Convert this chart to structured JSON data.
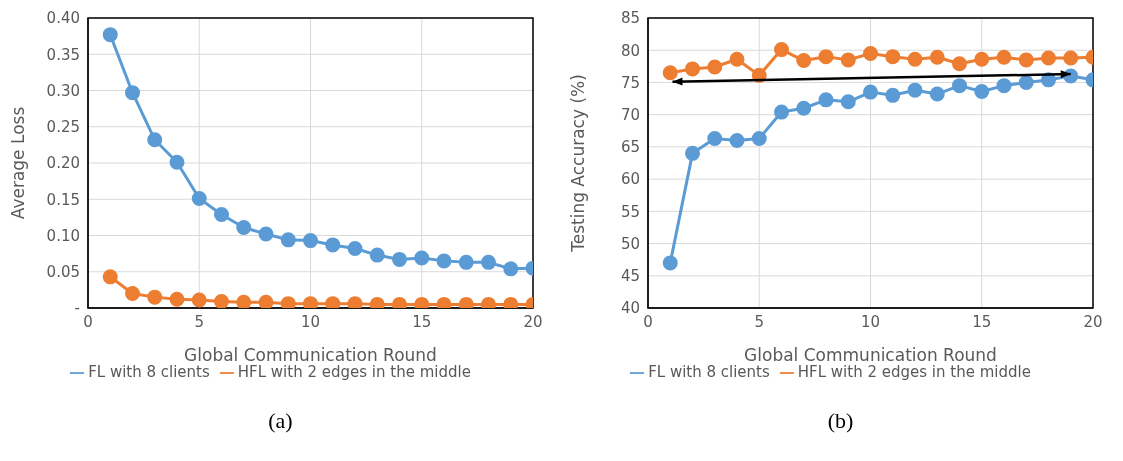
{
  "chart_data": [
    {
      "type": "line",
      "xlabel": "Global Communication Round",
      "ylabel": "Average Loss",
      "x": [
        1,
        2,
        3,
        4,
        5,
        6,
        7,
        8,
        9,
        10,
        11,
        12,
        13,
        14,
        15,
        16,
        17,
        18,
        19,
        20
      ],
      "xlim": [
        0,
        20
      ],
      "xticks": [
        0,
        5,
        10,
        15,
        20
      ],
      "ylim": [
        0,
        0.4
      ],
      "yticks": [
        {
          "value": 0,
          "label": "-"
        },
        {
          "value": 0.05,
          "label": "0.05"
        },
        {
          "value": 0.1,
          "label": "0.10"
        },
        {
          "value": 0.15,
          "label": "0.15"
        },
        {
          "value": 0.2,
          "label": "0.20"
        },
        {
          "value": 0.25,
          "label": "0.25"
        },
        {
          "value": 0.3,
          "label": "0.30"
        },
        {
          "value": 0.35,
          "label": "0.35"
        },
        {
          "value": 0.4,
          "label": "0.40"
        }
      ],
      "grid": true,
      "legend": "bottom",
      "marker": "circle",
      "annotations": [
        "(a)"
      ],
      "series": [
        {
          "name": "FL with 8 clients",
          "color": "#5b9bd5",
          "values": [
            0.377,
            0.297,
            0.232,
            0.201,
            0.151,
            0.129,
            0.111,
            0.102,
            0.094,
            0.093,
            0.087,
            0.082,
            0.073,
            0.067,
            0.069,
            0.065,
            0.063,
            0.063,
            0.054,
            0.055
          ]
        },
        {
          "name": "HFL with 2 edges in the middle",
          "color": "#ed7d31",
          "values": [
            0.043,
            0.02,
            0.015,
            0.012,
            0.011,
            0.009,
            0.008,
            0.008,
            0.006,
            0.006,
            0.006,
            0.006,
            0.005,
            0.005,
            0.005,
            0.005,
            0.005,
            0.005,
            0.005,
            0.005
          ]
        }
      ]
    },
    {
      "type": "line",
      "xlabel": "Global Communication Round",
      "ylabel": "Testing Accuracy (%)",
      "x": [
        1,
        2,
        3,
        4,
        5,
        6,
        7,
        8,
        9,
        10,
        11,
        12,
        13,
        14,
        15,
        16,
        17,
        18,
        19,
        20
      ],
      "xlim": [
        0,
        20
      ],
      "xticks": [
        0,
        5,
        10,
        15,
        20
      ],
      "ylim": [
        40,
        85
      ],
      "yticks": [
        40,
        45,
        50,
        55,
        60,
        65,
        70,
        75,
        80,
        85
      ],
      "grid": true,
      "legend": "bottom",
      "marker": "circle",
      "annotations": [
        "(b)"
      ],
      "series": [
        {
          "name": "FL with 8 clients",
          "color": "#5b9bd5",
          "values": [
            47,
            64,
            66.3,
            66,
            66.3,
            70.4,
            71,
            72.3,
            72,
            73.5,
            73,
            73.8,
            73.2,
            74.5,
            73.6,
            74.5,
            75,
            75.4,
            76,
            75.4
          ]
        },
        {
          "name": "HFL with 2 edges in the middle",
          "color": "#ed7d31",
          "values": [
            76.5,
            77.1,
            77.4,
            78.6,
            76.1,
            80.1,
            78.4,
            79,
            78.5,
            79.5,
            79,
            78.6,
            78.9,
            77.9,
            78.6,
            78.9,
            78.5,
            78.8,
            78.8,
            78.9
          ]
        }
      ]
    }
  ]
}
